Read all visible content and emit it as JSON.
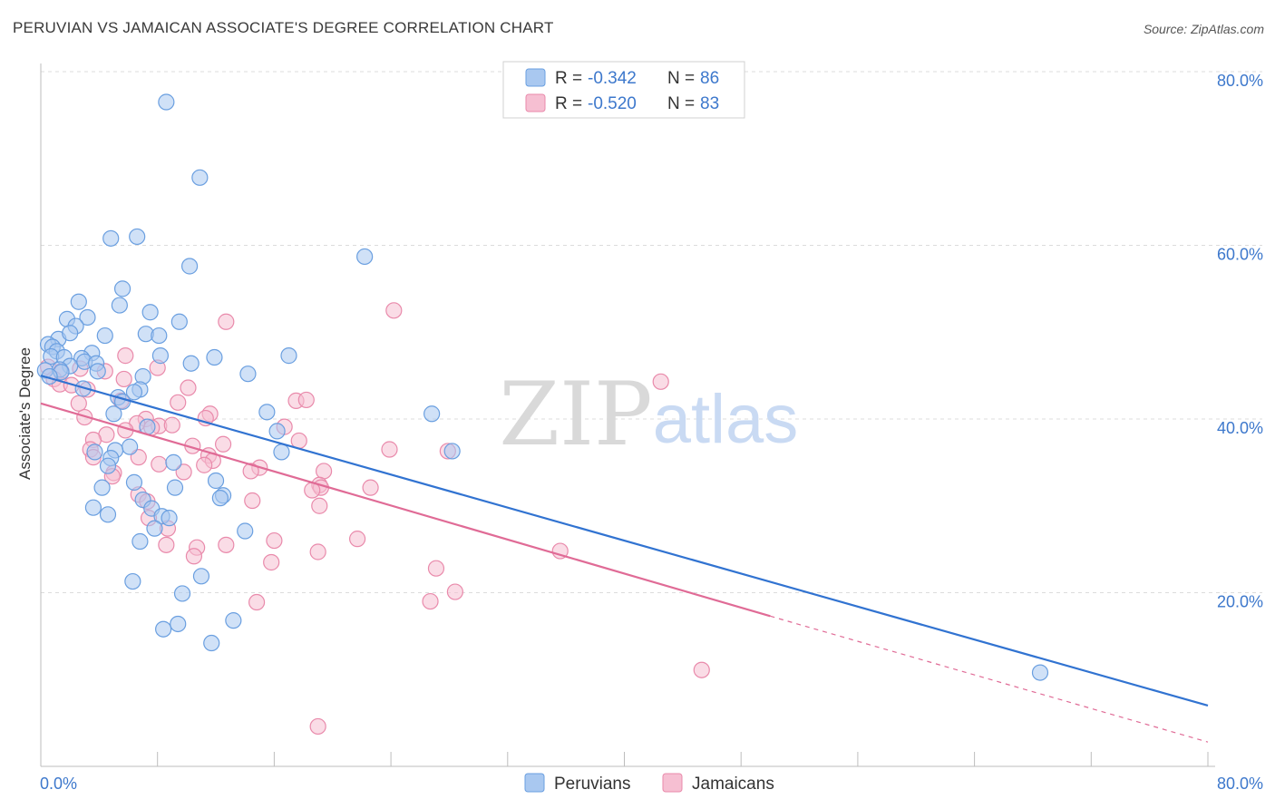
{
  "title": "PERUVIAN VS JAMAICAN ASSOCIATE'S DEGREE CORRELATION CHART",
  "source": "Source: ZipAtlas.com",
  "watermark": {
    "zip": "ZIP",
    "atlas": "atlas"
  },
  "colors": {
    "blue_fill": "#a9c8f0",
    "blue_stroke": "#6a9fe0",
    "blue_line": "#3173d1",
    "pink_fill": "#f6bfd2",
    "pink_stroke": "#e98aab",
    "pink_line": "#e06b96",
    "tick_text": "#3d78cc",
    "grid": "#dcdcdc"
  },
  "legend": {
    "rows": [
      {
        "r_label": "R = ",
        "r_value": "-0.342",
        "n_label": "N = ",
        "n_value": "86"
      },
      {
        "r_label": "R = ",
        "r_value": "-0.520",
        "n_label": "N = ",
        "n_value": "83"
      }
    ]
  },
  "chart_data": {
    "type": "scatter",
    "title": "PERUVIAN VS JAMAICAN ASSOCIATE'S DEGREE CORRELATION CHART",
    "xlabel": "",
    "ylabel": "Associate's Degree",
    "xlim": [
      0,
      80
    ],
    "ylim": [
      0,
      82
    ],
    "x_ticks": [
      "0.0%",
      "80.0%"
    ],
    "y_ticks": [
      {
        "value": 20,
        "label": "20.0%"
      },
      {
        "value": 40,
        "label": "40.0%"
      },
      {
        "value": 60,
        "label": "60.0%"
      },
      {
        "value": 80,
        "label": "80.0%"
      }
    ],
    "grid": true,
    "legend_position": "top-center",
    "series": [
      {
        "name": "Peruvians",
        "r": -0.342,
        "n": 86,
        "trend": {
          "x0": 0,
          "y0": 45.0,
          "x1": 80,
          "y1": 7.0
        },
        "points": [
          [
            8.6,
            76.5
          ],
          [
            10.9,
            67.8
          ],
          [
            4.8,
            60.8
          ],
          [
            6.6,
            61.0
          ],
          [
            22.2,
            58.7
          ],
          [
            10.2,
            57.6
          ],
          [
            5.6,
            55.0
          ],
          [
            2.6,
            53.5
          ],
          [
            5.4,
            53.1
          ],
          [
            1.8,
            51.5
          ],
          [
            3.2,
            51.7
          ],
          [
            9.5,
            51.2
          ],
          [
            7.5,
            52.3
          ],
          [
            2.4,
            50.7
          ],
          [
            1.2,
            49.2
          ],
          [
            2.0,
            49.9
          ],
          [
            4.4,
            49.6
          ],
          [
            7.2,
            49.8
          ],
          [
            8.1,
            49.6
          ],
          [
            0.5,
            48.6
          ],
          [
            0.8,
            48.3
          ],
          [
            1.1,
            47.8
          ],
          [
            3.5,
            47.6
          ],
          [
            0.7,
            47.2
          ],
          [
            1.6,
            47.1
          ],
          [
            2.8,
            47.0
          ],
          [
            3.0,
            46.6
          ],
          [
            3.8,
            46.4
          ],
          [
            2.0,
            46.1
          ],
          [
            10.3,
            46.4
          ],
          [
            11.9,
            47.1
          ],
          [
            17.0,
            47.3
          ],
          [
            8.2,
            47.3
          ],
          [
            0.3,
            45.6
          ],
          [
            1.3,
            45.7
          ],
          [
            1.4,
            45.4
          ],
          [
            3.9,
            45.5
          ],
          [
            0.6,
            44.9
          ],
          [
            2.9,
            43.5
          ],
          [
            7.0,
            44.9
          ],
          [
            14.2,
            45.2
          ],
          [
            6.8,
            43.4
          ],
          [
            6.4,
            43.1
          ],
          [
            5.3,
            42.5
          ],
          [
            5.6,
            42.0
          ],
          [
            5.0,
            40.6
          ],
          [
            15.5,
            40.8
          ],
          [
            26.8,
            40.6
          ],
          [
            7.3,
            39.1
          ],
          [
            16.2,
            38.6
          ],
          [
            3.7,
            36.2
          ],
          [
            6.1,
            36.8
          ],
          [
            5.1,
            36.4
          ],
          [
            16.5,
            36.2
          ],
          [
            4.8,
            35.5
          ],
          [
            9.1,
            35.0
          ],
          [
            28.2,
            36.3
          ],
          [
            4.6,
            34.6
          ],
          [
            6.4,
            32.7
          ],
          [
            12.0,
            32.9
          ],
          [
            9.2,
            32.1
          ],
          [
            12.5,
            31.2
          ],
          [
            12.3,
            30.9
          ],
          [
            4.2,
            32.1
          ],
          [
            7.0,
            30.7
          ],
          [
            7.6,
            29.7
          ],
          [
            3.6,
            29.8
          ],
          [
            4.6,
            29.0
          ],
          [
            8.3,
            28.8
          ],
          [
            8.8,
            28.6
          ],
          [
            14.0,
            27.1
          ],
          [
            7.8,
            27.4
          ],
          [
            6.8,
            25.9
          ],
          [
            11.0,
            21.9
          ],
          [
            6.3,
            21.3
          ],
          [
            9.7,
            19.9
          ],
          [
            13.2,
            16.8
          ],
          [
            9.4,
            16.4
          ],
          [
            8.4,
            15.8
          ],
          [
            11.7,
            14.2
          ],
          [
            68.5,
            10.8
          ]
        ]
      },
      {
        "name": "Jamaicans",
        "r": -0.52,
        "n": 83,
        "trend": {
          "x0": 0,
          "y0": 41.8,
          "x1": 50,
          "y1": 17.3,
          "dash_x1": 80,
          "dash_y1": 2.8
        },
        "points": [
          [
            24.2,
            52.5
          ],
          [
            12.7,
            51.2
          ],
          [
            5.8,
            47.3
          ],
          [
            8.0,
            45.9
          ],
          [
            0.5,
            46.0
          ],
          [
            1.4,
            45.5
          ],
          [
            2.7,
            45.8
          ],
          [
            4.4,
            45.5
          ],
          [
            0.9,
            44.6
          ],
          [
            1.3,
            44.0
          ],
          [
            2.1,
            43.9
          ],
          [
            3.2,
            43.4
          ],
          [
            5.7,
            44.6
          ],
          [
            10.1,
            43.6
          ],
          [
            42.5,
            44.3
          ],
          [
            17.5,
            42.1
          ],
          [
            18.2,
            42.2
          ],
          [
            2.6,
            41.8
          ],
          [
            5.5,
            42.1
          ],
          [
            9.4,
            41.9
          ],
          [
            11.6,
            40.6
          ],
          [
            11.3,
            40.1
          ],
          [
            3.0,
            40.2
          ],
          [
            7.2,
            40.0
          ],
          [
            8.1,
            39.2
          ],
          [
            9.0,
            39.3
          ],
          [
            6.6,
            39.5
          ],
          [
            7.6,
            39.0
          ],
          [
            16.7,
            39.1
          ],
          [
            5.8,
            38.7
          ],
          [
            4.5,
            38.2
          ],
          [
            3.6,
            37.6
          ],
          [
            12.5,
            37.1
          ],
          [
            10.4,
            36.9
          ],
          [
            17.7,
            37.5
          ],
          [
            3.4,
            36.5
          ],
          [
            23.9,
            36.5
          ],
          [
            27.9,
            36.3
          ],
          [
            3.6,
            35.6
          ],
          [
            6.7,
            35.6
          ],
          [
            11.5,
            35.8
          ],
          [
            11.8,
            35.2
          ],
          [
            11.2,
            34.7
          ],
          [
            8.1,
            34.8
          ],
          [
            15.0,
            34.4
          ],
          [
            14.4,
            34.0
          ],
          [
            19.4,
            34.0
          ],
          [
            5.0,
            33.8
          ],
          [
            4.9,
            33.4
          ],
          [
            9.8,
            33.9
          ],
          [
            19.1,
            32.4
          ],
          [
            19.2,
            32.1
          ],
          [
            18.6,
            31.8
          ],
          [
            22.6,
            32.1
          ],
          [
            6.7,
            31.3
          ],
          [
            7.3,
            30.5
          ],
          [
            14.5,
            30.6
          ],
          [
            19.1,
            30.0
          ],
          [
            7.4,
            28.6
          ],
          [
            8.7,
            27.4
          ],
          [
            16.0,
            26.0
          ],
          [
            21.7,
            26.2
          ],
          [
            8.6,
            25.5
          ],
          [
            10.7,
            25.2
          ],
          [
            12.7,
            25.5
          ],
          [
            19.0,
            24.7
          ],
          [
            35.6,
            24.8
          ],
          [
            10.5,
            24.2
          ],
          [
            15.8,
            23.5
          ],
          [
            27.1,
            22.8
          ],
          [
            28.4,
            20.1
          ],
          [
            26.7,
            19.0
          ],
          [
            14.8,
            18.9
          ],
          [
            45.3,
            11.1
          ],
          [
            19.0,
            4.6
          ]
        ]
      }
    ]
  }
}
